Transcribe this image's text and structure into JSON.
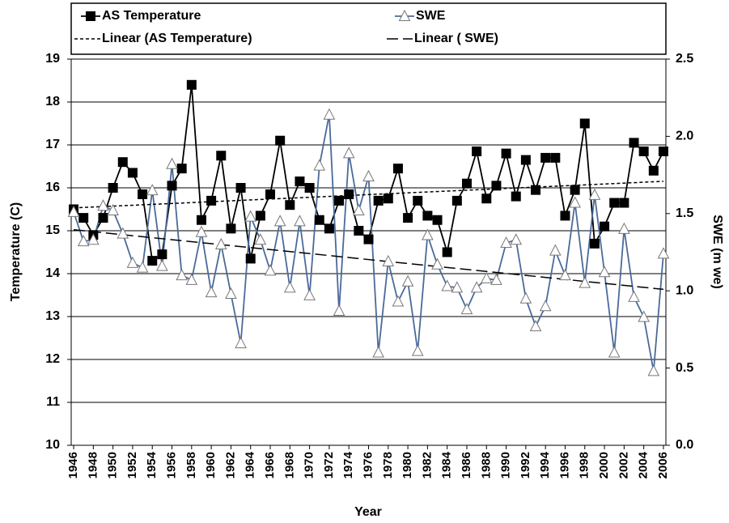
{
  "chart_data": {
    "type": "line",
    "x_label": "Year",
    "y_label": "Temperature (C)",
    "y2_label": "SWE (m we)",
    "x": [
      1946,
      1947,
      1948,
      1949,
      1950,
      1951,
      1952,
      1953,
      1954,
      1955,
      1956,
      1957,
      1958,
      1959,
      1960,
      1961,
      1962,
      1963,
      1964,
      1965,
      1966,
      1967,
      1968,
      1969,
      1970,
      1971,
      1972,
      1973,
      1974,
      1975,
      1976,
      1977,
      1978,
      1979,
      1980,
      1981,
      1982,
      1983,
      1984,
      1985,
      1986,
      1987,
      1988,
      1989,
      1990,
      1991,
      1992,
      1993,
      1994,
      1995,
      1996,
      1997,
      1998,
      1999,
      2000,
      2001,
      2002,
      2003,
      2004,
      2005,
      2006
    ],
    "xlim": [
      1945.75,
      2006.25
    ],
    "xticks": [
      1946,
      1948,
      1950,
      1952,
      1954,
      1956,
      1958,
      1960,
      1962,
      1964,
      1966,
      1968,
      1970,
      1972,
      1974,
      1976,
      1978,
      1980,
      1982,
      1984,
      1986,
      1988,
      1990,
      1992,
      1994,
      1996,
      1998,
      2000,
      2002,
      2004,
      2006
    ],
    "ylim": [
      10,
      19
    ],
    "yticks": [
      10,
      11,
      12,
      13,
      14,
      15,
      16,
      17,
      18,
      19
    ],
    "y2lim": [
      0,
      2.5
    ],
    "y2ticks": [
      {
        "value": 0,
        "label": "0.0"
      },
      {
        "value": 0.5,
        "label": "0.5"
      },
      {
        "value": 1,
        "label": "1.0"
      },
      {
        "value": 1.5,
        "label": "1.5"
      },
      {
        "value": 2,
        "label": "2.0"
      },
      {
        "value": 2.5,
        "label": "2.5"
      }
    ],
    "grid": true,
    "series": [
      {
        "name": "AS Temperature",
        "color": "#000000",
        "marker": "square",
        "axis": "y",
        "values": [
          15.5,
          15.3,
          14.9,
          15.3,
          16.0,
          16.6,
          16.35,
          15.85,
          14.3,
          14.45,
          16.05,
          16.45,
          18.4,
          15.25,
          15.7,
          16.75,
          15.05,
          16.0,
          14.35,
          15.35,
          15.85,
          17.1,
          15.6,
          16.15,
          16.0,
          15.25,
          15.05,
          15.7,
          15.85,
          15.0,
          14.8,
          15.7,
          15.75,
          16.45,
          15.3,
          15.7,
          15.35,
          15.25,
          14.5,
          15.7,
          16.1,
          16.85,
          15.75,
          16.05,
          16.8,
          15.8,
          16.65,
          15.95,
          16.7,
          16.7,
          15.35,
          15.95,
          17.5,
          14.7,
          15.1,
          15.65,
          15.65,
          17.05,
          16.85,
          16.4,
          16.85
        ]
      },
      {
        "name": "SWE",
        "color": "#4a6a9a",
        "marker": "triangle",
        "axis": "y2",
        "values": [
          1.51,
          1.32,
          1.33,
          1.55,
          1.52,
          1.37,
          1.18,
          1.15,
          1.65,
          1.16,
          1.82,
          1.1,
          1.07,
          1.38,
          0.99,
          1.3,
          0.98,
          0.66,
          1.48,
          1.33,
          1.13,
          1.45,
          1.02,
          1.45,
          0.97,
          1.81,
          2.14,
          0.87,
          1.89,
          1.52,
          1.74,
          0.6,
          1.19,
          0.93,
          1.06,
          0.61,
          1.36,
          1.17,
          1.03,
          1.02,
          0.88,
          1.02,
          1.08,
          1.07,
          1.31,
          1.33,
          0.95,
          0.77,
          0.9,
          1.26,
          1.1,
          1.57,
          1.05,
          1.62,
          1.12,
          0.6,
          1.4,
          0.96,
          0.83,
          0.48,
          1.24
        ]
      }
    ],
    "trendlines": [
      {
        "name": "Linear (AS Temperature)",
        "series": 0,
        "dash": "4,3"
      },
      {
        "name": "Linear ( SWE)",
        "series": 1,
        "dash": "14,6"
      }
    ]
  }
}
